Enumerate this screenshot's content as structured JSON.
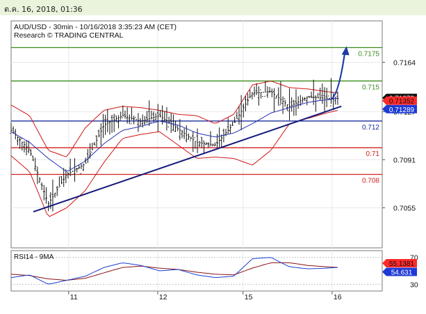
{
  "header": {
    "timestamp": "ต.ค. 16, 2018, 01:36"
  },
  "chart_data": {
    "type": "line",
    "title": "AUD/USD - 30min - 10/16/2018 3:35:23 AM (CET)",
    "subtitle": "Research © TRADING CENTRAL",
    "x_ticks": [
      "11",
      "12",
      "15",
      "16"
    ],
    "price_axis": {
      "ylim": [
        0.7025,
        0.7195
      ],
      "ticks": [
        "0.7164",
        "0.7127",
        "0.7091",
        "0.7055"
      ]
    },
    "levels": [
      {
        "label": "0.7175",
        "value": 0.7175,
        "color": "#3c8c1e"
      },
      {
        "label": "0.715",
        "value": 0.715,
        "color": "#3c8c1e"
      },
      {
        "label": "0.712",
        "value": 0.712,
        "color": "#1a2c9c"
      },
      {
        "label": "0.71",
        "value": 0.71,
        "color": "#d02020"
      },
      {
        "label": "0.708",
        "value": 0.708,
        "color": "#d02020"
      }
    ],
    "price_badges": [
      {
        "label": "0.71373",
        "value": 0.71373,
        "bg": "#111111",
        "fg": "#ffffff"
      },
      {
        "label": "0.71352",
        "value": 0.71352,
        "bg": "#ff2a2a",
        "fg": "#111111"
      },
      {
        "label": "0.71289",
        "value": 0.71289,
        "bg": "#1e3ad6",
        "fg": "#ffffff"
      }
    ],
    "trendline": {
      "start": [
        0.06,
        0.7052
      ],
      "end": [
        0.89,
        0.7131
      ],
      "color": "#141a7a"
    },
    "projection": {
      "from": [
        0.86,
        0.7136
      ],
      "to": [
        0.9,
        0.7175
      ],
      "color": "#1e3aa8"
    },
    "price_series": {
      "x": [
        0,
        0.05,
        0.1,
        0.15,
        0.2,
        0.25,
        0.3,
        0.35,
        0.4,
        0.45,
        0.5,
        0.55,
        0.6,
        0.65,
        0.7,
        0.75,
        0.8,
        0.85,
        0.88
      ],
      "close": [
        0.7113,
        0.7098,
        0.7058,
        0.708,
        0.7088,
        0.7117,
        0.7124,
        0.712,
        0.7124,
        0.7114,
        0.7104,
        0.7102,
        0.7118,
        0.7141,
        0.7142,
        0.7131,
        0.7138,
        0.7137,
        0.7137
      ]
    },
    "bollinger": {
      "upper": [
        0.7132,
        0.7124,
        0.7098,
        0.7093,
        0.7115,
        0.7128,
        0.7131,
        0.713,
        0.7128,
        0.7125,
        0.7124,
        0.7118,
        0.7125,
        0.7147,
        0.715,
        0.7145,
        0.7144,
        0.7142,
        0.7141
      ],
      "lower": [
        0.7094,
        0.7082,
        0.7048,
        0.7055,
        0.7068,
        0.7089,
        0.7107,
        0.711,
        0.7112,
        0.7102,
        0.7092,
        0.7093,
        0.7092,
        0.7087,
        0.7098,
        0.7118,
        0.7122,
        0.7126,
        0.7128
      ]
    },
    "moving_average": [
      0.7112,
      0.7104,
      0.7092,
      0.7082,
      0.709,
      0.7103,
      0.7113,
      0.7116,
      0.712,
      0.7117,
      0.7111,
      0.7108,
      0.7111,
      0.7118,
      0.7126,
      0.713,
      0.7134,
      0.7136,
      0.7137
    ],
    "rsi": {
      "label": "RSI14 - 9MA",
      "ylim": [
        20,
        80
      ],
      "ticks": [
        "70",
        "30"
      ],
      "rsi_value": "54.631",
      "ma_value": "55.1381",
      "values": [
        40,
        44,
        30,
        36,
        42,
        55,
        62,
        58,
        50,
        52,
        44,
        40,
        42,
        68,
        70,
        56,
        53,
        54,
        55
      ],
      "ma": [
        45,
        43,
        38,
        36,
        39,
        47,
        55,
        57,
        54,
        52,
        48,
        45,
        44,
        54,
        62,
        62,
        58,
        56,
        55
      ]
    },
    "colors": {
      "candle": "#111111",
      "bollinger": "#d01414",
      "moving_average": "#2532b0",
      "rsi_line": "#1a3fd0",
      "rsi_ma": "#8a1010",
      "grid": "#e8e8e8",
      "panel_border": "#777777"
    },
    "grid": true
  }
}
